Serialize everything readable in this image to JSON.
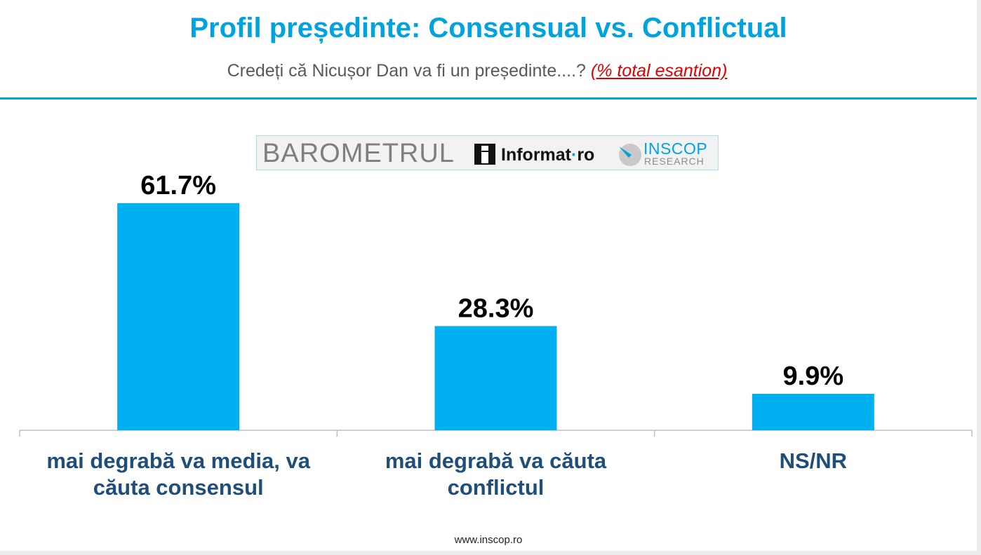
{
  "header": {
    "title": "Profil președinte: Consensual vs. Conflictual",
    "subtitle": "Credeți că Nicușor Dan va fi un președinte....?",
    "subtitle_note": "(% total esantion)"
  },
  "logo": {
    "barometrul": "BAROMETRUL",
    "informat": "Informat",
    "informat_dot": "·",
    "informat_tld": "ro",
    "inscop": "INSCOP",
    "research": "RESEARCH"
  },
  "chart_data": {
    "type": "bar",
    "categories": [
      [
        "mai degrabă va media, va",
        "căuta consensul"
      ],
      [
        "mai degrabă va căuta",
        "conflictul"
      ],
      [
        "NS/NR"
      ]
    ],
    "values": [
      61.7,
      28.3,
      9.9
    ],
    "value_labels": [
      "61.7%",
      "28.3%",
      "9.9%"
    ],
    "ylim": [
      0,
      75
    ],
    "bar_color": "#00b0f0",
    "grid": false,
    "legend": "none"
  },
  "footer": {
    "url": "www.inscop.ro"
  },
  "colors": {
    "accent": "#00a3e0",
    "bar": "#00b0f0",
    "category_text": "#1f4e79",
    "note": "#e00000"
  }
}
